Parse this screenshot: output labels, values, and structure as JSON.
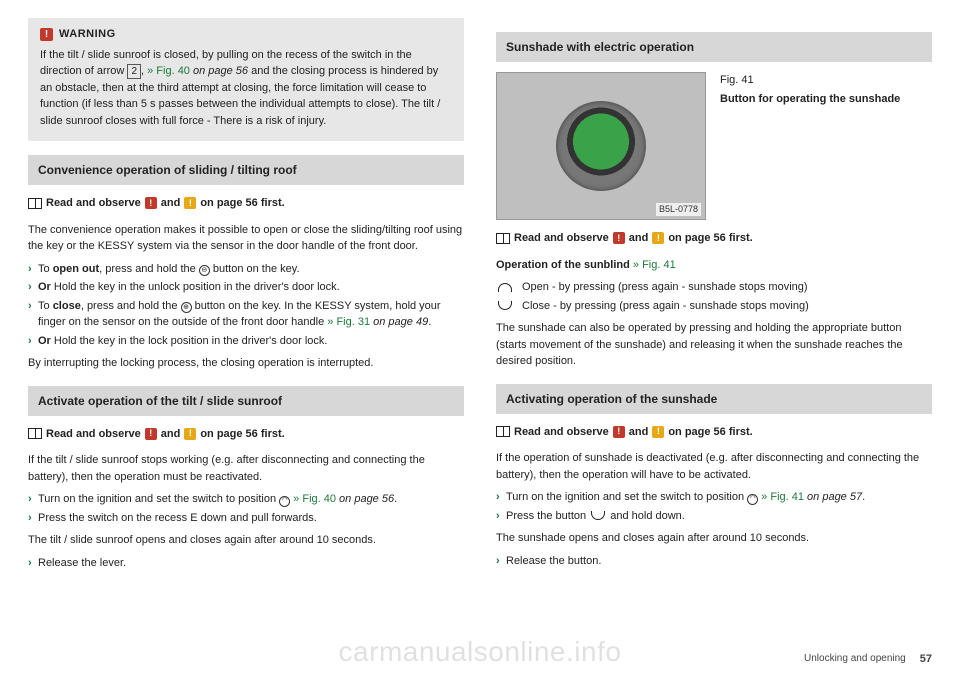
{
  "warning": {
    "title": "WARNING",
    "body_a": "If the tilt / slide sunroof is closed, by pulling on the recess of the switch in the direction of arrow ",
    "key": "2",
    "link": "» Fig. 40",
    "link_tail": " on page 56",
    "body_b": " and the closing process is hindered by an obstacle, then at the third attempt at closing, the force limitation will cease to function (if less than 5 s passes between the individual attempts to close). The tilt / slide sunroof closes with full force - There is a risk of injury."
  },
  "left": {
    "sec1_title": "Convenience operation of sliding / tilting roof",
    "read_observe_a": "Read and observe ",
    "read_observe_b": " and ",
    "read_observe_c": " on page 56 first.",
    "p1": "The convenience operation makes it possible to open or close the sliding/tilting roof using the key or the KESSY system via the sensor in the door handle of the front door.",
    "b1_a": "To ",
    "b1_bold": "open out",
    "b1_b": ", press and hold the ",
    "b1_c": " button on the key.",
    "b2_a": "Or",
    "b2_b": " Hold the key in the unlock position in the driver's door lock.",
    "b3_a": "To ",
    "b3_bold": "close",
    "b3_b": ", press and hold the ",
    "b3_c": " button on the key. In the KESSY system, hold your finger on the sensor on the outside of the front door handle ",
    "b3_link": "» Fig. 31",
    "b3_tail": " on page 49",
    "b3_end": ".",
    "b4_a": "Or",
    "b4_b": " Hold the key in the lock position in the driver's door lock.",
    "p2": "By interrupting the locking process, the closing operation is interrupted.",
    "sec2_title": "Activate operation of the tilt / slide sunroof",
    "p3": "If the tilt / slide sunroof stops working (e.g. after disconnecting and connecting the battery), then the operation must be reactivated.",
    "b5_a": "Turn on the ignition and set the switch to position ",
    "b5_link": " » Fig. 40",
    "b5_tail": " on page 56",
    "b5_end": ".",
    "b6": "Press the switch on the recess E down and pull forwards.",
    "p4": "The tilt / slide sunroof opens and closes again after around 10 seconds.",
    "b7": "Release the lever."
  },
  "right": {
    "sec1_title": "Sunshade with electric operation",
    "fig_num": "Fig. 41",
    "fig_cap": "Button for operating the sunshade",
    "fig_code": "B5L-0778",
    "op_title_a": "Operation of the sunblind ",
    "op_title_link": "» Fig. 41",
    "op1": "Open - by pressing (press again - sunshade stops moving)",
    "op2": "Close - by pressing (press again - sunshade stops moving)",
    "p1": "The sunshade can also be operated by pressing and holding the appropriate button (starts movement of the sunshade) and releasing it when the sunshade reaches the desired position.",
    "sec2_title": "Activating operation of the sunshade",
    "p2": "If the operation of sunshade is deactivated (e.g. after disconnecting and connecting the battery), then the operation will have to be activated.",
    "b1_a": "Turn on the ignition and set the switch to position ",
    "b1_link": " » Fig. 41",
    "b1_tail": " on page 57",
    "b1_end": ".",
    "b2_a": "Press the button ",
    "b2_b": " and hold down.",
    "p3": "The sunshade opens and closes again after around 10 seconds.",
    "b3": "Release the button."
  },
  "footer": {
    "section": "Unlocking and opening",
    "page": "57"
  },
  "watermark": "carmanualsonline.info"
}
